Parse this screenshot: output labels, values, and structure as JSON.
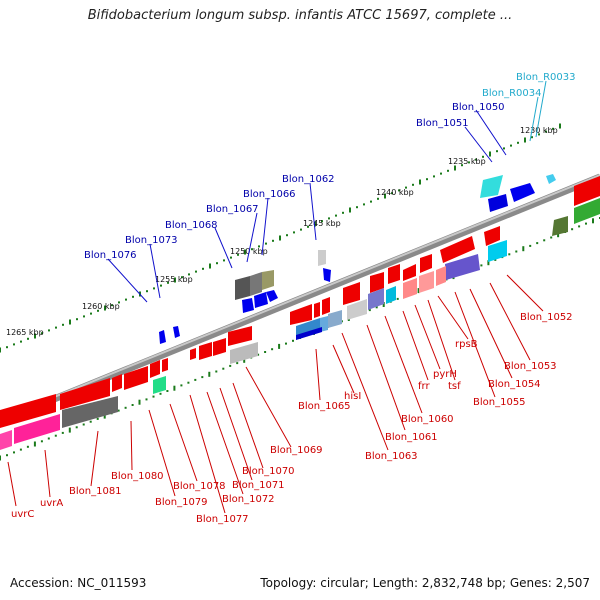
{
  "title": "Bifidobacterium longum subsp. infantis ATCC 15697, complete ...",
  "footer": {
    "accession_label": "Accession:",
    "accession": "NC_011593",
    "topology_label": "Topology:",
    "topology": "circular",
    "length_label": "Length:",
    "length": "2,832,748 bp",
    "genes_label": "Genes:",
    "genes": "2,507"
  },
  "colors": {
    "forward_label": "#0000aa",
    "reverse_label": "#cc0000",
    "rna_label": "#22aacc",
    "backbone": "#777777",
    "tick": "#1a7a1a"
  },
  "scale_ticks": [
    "1230 kbp",
    "1235 kbp",
    "1240 kbp",
    "1245 kbp",
    "1250 kbp",
    "1255 kbp",
    "1260 kbp",
    "1265 kbp"
  ],
  "forward_labels": [
    "Blon_1050",
    "Blon_1051",
    "Blon_1062",
    "Blon_1066",
    "Blon_1067",
    "Blon_1068",
    "Blon_1073",
    "Blon_1076"
  ],
  "rna_labels": [
    "Blon_R0033",
    "Blon_R0034"
  ],
  "reverse_labels": [
    "Blon_1052",
    "Blon_1053",
    "Blon_1054",
    "Blon_1055",
    "rpsB",
    "tsf",
    "pyrH",
    "frr",
    "Blon_1060",
    "Blon_1061",
    "Blon_1063",
    "hisI",
    "Blon_1065",
    "Blon_1069",
    "Blon_1070",
    "Blon_1071",
    "Blon_1072",
    "Blon_1077",
    "Blon_1078",
    "Blon_1079",
    "Blon_1080",
    "Blon_1081",
    "uvrA",
    "uvrC"
  ]
}
